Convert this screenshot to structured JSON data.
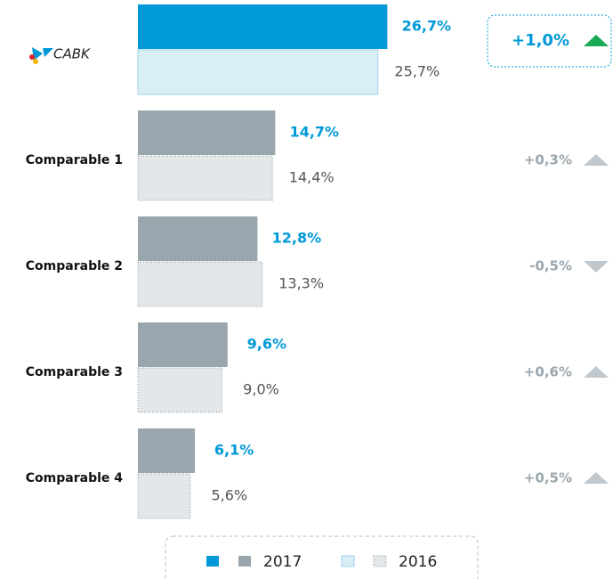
{
  "chart_data": {
    "type": "bar",
    "orientation": "horizontal",
    "categories": [
      "CABK",
      "Comparable 1",
      "Comparable 2",
      "Comparable 3",
      "Comparable 4"
    ],
    "highlight_category": 0,
    "series": [
      {
        "name": "2017",
        "color": "#9aa6ae",
        "highlight_color": "#0099d8",
        "values": [
          26.7,
          14.7,
          12.8,
          9.6,
          6.1
        ],
        "value_labels": [
          "26,7%",
          "14,7%",
          "12,8%",
          "9,6%",
          "6,1%"
        ]
      },
      {
        "name": "2016",
        "color": "#e3e7ea",
        "highlight_color": "#d9eef7",
        "values": [
          25.7,
          14.4,
          13.3,
          9.0,
          5.6
        ],
        "value_labels": [
          "25,7%",
          "14,4%",
          "13,3%",
          "9,0%",
          "5,6%"
        ]
      }
    ],
    "changes": {
      "values": [
        1.0,
        0.3,
        -0.5,
        0.6,
        0.5
      ],
      "value_labels": [
        "+1,0%",
        "+0,3%",
        "-0,5%",
        "+0,6%",
        "+0,5%"
      ],
      "color": "#c0c8ce",
      "highlight_color": "#1aaa55"
    },
    "xlim": [
      0,
      28
    ]
  }
}
